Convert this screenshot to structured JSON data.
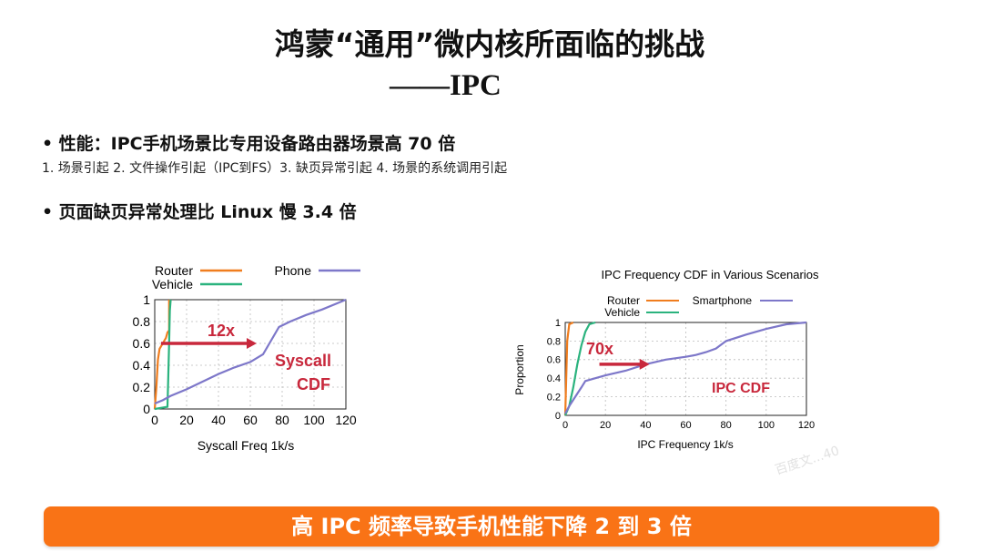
{
  "slide": {
    "title_line1": "鸿蒙“通用”微内核所面临的挑战",
    "title_line2": "——IPC",
    "bullets": [
      "性能：IPC手机场景比专用设备路由器场景高 70 倍",
      "页面缺页异常处理比 Linux 慢 3.4 倍"
    ],
    "bullet_symbol": "•",
    "sub_text": "1. 场景引起 2. 文件操作引起（IPC到FS）3. 缺页异常引起 4. 场景的系统调用引起",
    "banner": "高 IPC 频率导致手机性能下降 2 到 3 倍",
    "watermark": "百度文...40"
  },
  "chart_data": [
    {
      "type": "line",
      "title": "",
      "xlabel": "Syscall Freq 1k/s",
      "ylabel": "",
      "xlim": [
        0,
        120
      ],
      "ylim": [
        0,
        1
      ],
      "x_ticks": [
        "0",
        "20",
        "40",
        "60",
        "80",
        "100",
        "120"
      ],
      "y_ticks": [
        "0",
        "0.2",
        "0.4",
        "0.6",
        "0.8",
        "1"
      ],
      "grid": true,
      "legend_position": "top",
      "series": [
        {
          "name": "Router",
          "color": "#f07d1e",
          "x": [
            0,
            1,
            2,
            3,
            5,
            7,
            8,
            9,
            9
          ],
          "y": [
            0,
            0.2,
            0.45,
            0.55,
            0.6,
            0.65,
            0.7,
            0.72,
            1.0
          ]
        },
        {
          "name": "Vehicle",
          "color": "#2bb37e",
          "x": [
            0,
            8,
            8.5,
            9,
            9.5,
            10
          ],
          "y": [
            0,
            0.02,
            0.3,
            0.6,
            0.9,
            1.0
          ]
        },
        {
          "name": "Phone",
          "color": "#7d77c9",
          "x": [
            0,
            5,
            10,
            20,
            30,
            40,
            50,
            60,
            68,
            72,
            78,
            85,
            95,
            105,
            115,
            120
          ],
          "y": [
            0.05,
            0.08,
            0.12,
            0.18,
            0.25,
            0.32,
            0.38,
            0.43,
            0.5,
            0.6,
            0.75,
            0.8,
            0.86,
            0.91,
            0.97,
            1.0
          ]
        }
      ],
      "annotations": [
        {
          "text": "12x",
          "color": "#c8283c"
        },
        {
          "text": "Syscall",
          "color": "#c8283c"
        },
        {
          "text": "CDF",
          "color": "#c8283c"
        }
      ]
    },
    {
      "type": "line",
      "title": "IPC Frequency CDF in Various Scenarios",
      "xlabel": "IPC Frequency 1k/s",
      "ylabel": "Proportion",
      "xlim": [
        0,
        120
      ],
      "ylim": [
        0,
        1
      ],
      "x_ticks": [
        "0",
        "20",
        "40",
        "60",
        "80",
        "100",
        "120"
      ],
      "y_ticks": [
        "0",
        "0.2",
        "0.4",
        "0.6",
        "0.8",
        "1"
      ],
      "grid": true,
      "legend_position": "top",
      "series": [
        {
          "name": "Router",
          "color": "#f07d1e",
          "x": [
            0,
            0.5,
            1,
            2,
            4
          ],
          "y": [
            0,
            0.4,
            0.8,
            0.98,
            1.0
          ]
        },
        {
          "name": "Vehicle",
          "color": "#2bb37e",
          "x": [
            0,
            2,
            4,
            6,
            8,
            10,
            12,
            15
          ],
          "y": [
            0,
            0.1,
            0.3,
            0.55,
            0.75,
            0.9,
            0.98,
            1.0
          ]
        },
        {
          "name": "Smartphone",
          "color": "#7d77c9",
          "x": [
            0,
            2,
            5,
            8,
            10,
            15,
            20,
            30,
            40,
            50,
            60,
            65,
            70,
            75,
            80,
            90,
            100,
            110,
            120
          ],
          "y": [
            0.02,
            0.1,
            0.2,
            0.3,
            0.37,
            0.4,
            0.43,
            0.48,
            0.55,
            0.6,
            0.63,
            0.65,
            0.68,
            0.72,
            0.8,
            0.87,
            0.93,
            0.98,
            1.0
          ]
        }
      ],
      "annotations": [
        {
          "text": "70x",
          "color": "#c8283c"
        },
        {
          "text": "IPC CDF",
          "color": "#c8283c"
        }
      ]
    }
  ]
}
